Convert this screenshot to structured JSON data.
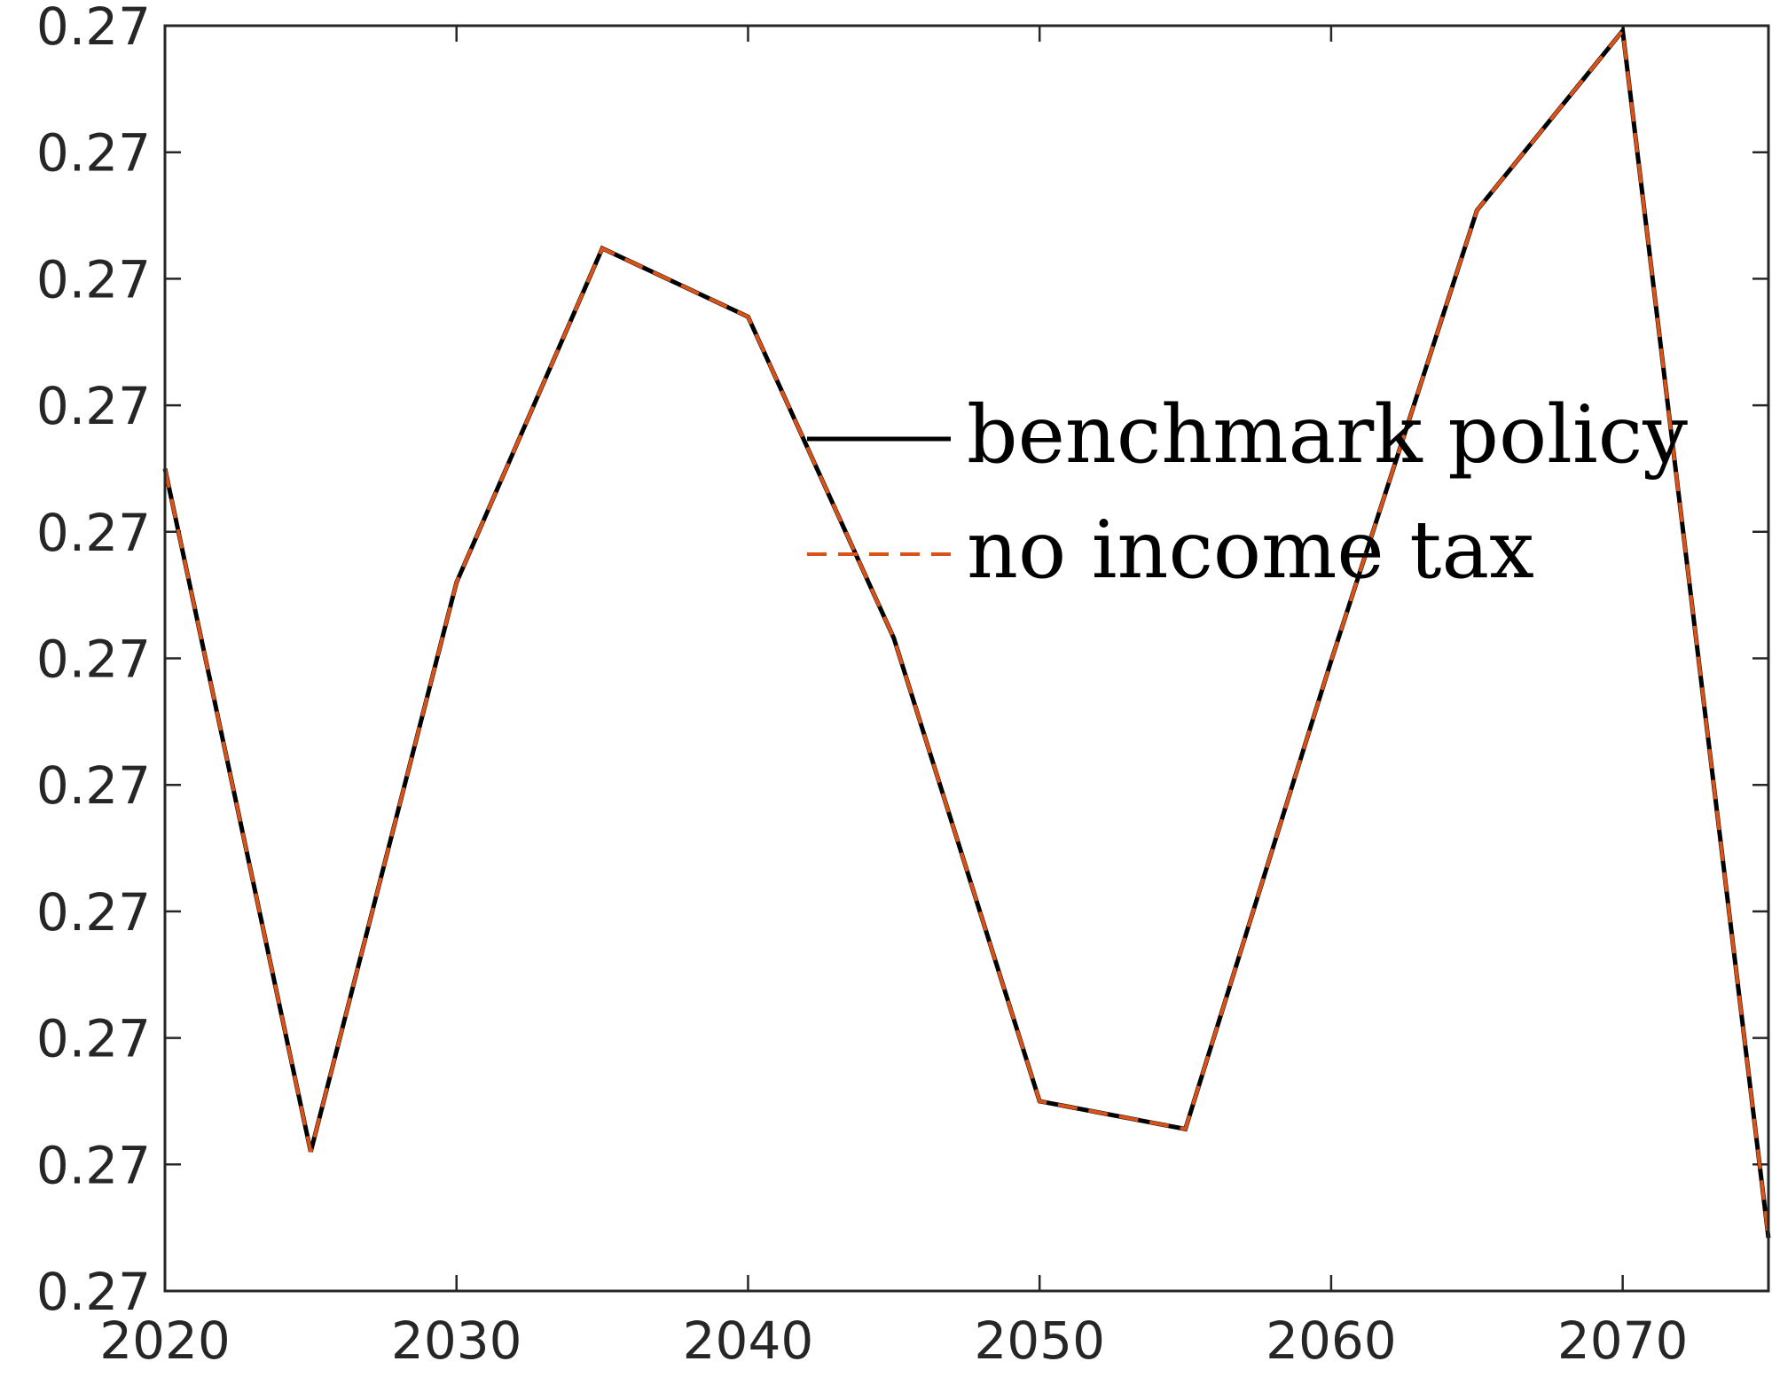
{
  "chart_data": {
    "type": "line",
    "x": [
      2020,
      2025,
      2030,
      2035,
      2040,
      2045,
      2050,
      2055,
      2060,
      2065,
      2070,
      2075
    ],
    "series": [
      {
        "name": "benchmark policy",
        "color": "#000000",
        "style": "solid",
        "values": [
          0.27225,
          0.26955,
          0.2718,
          0.27312,
          0.27285,
          0.27158,
          0.26975,
          0.26964,
          0.27149,
          0.27327,
          0.27398,
          0.26921
        ]
      },
      {
        "name": "no income tax",
        "color": "#D95319",
        "style": "dashed",
        "values": [
          0.27225,
          0.26955,
          0.2718,
          0.27312,
          0.27285,
          0.27158,
          0.26975,
          0.26964,
          0.27149,
          0.27327,
          0.27398,
          0.26921
        ]
      }
    ],
    "xlim": [
      2020,
      2075
    ],
    "ylim": [
      0.269,
      0.274
    ],
    "xticks": [
      2020,
      2030,
      2040,
      2050,
      2060,
      2070
    ],
    "xtick_labels": [
      "2020",
      "2030",
      "2040",
      "2050",
      "2060",
      "2070"
    ],
    "yticks": [
      0.269,
      0.2695,
      0.27,
      0.2705,
      0.271,
      0.2715,
      0.272,
      0.2725,
      0.273,
      0.2735,
      0.274
    ],
    "ytick_labels": [
      "0.27",
      "0.27",
      "0.27",
      "0.27",
      "0.27",
      "0.27",
      "0.27",
      "0.27",
      "0.27",
      "0.27",
      "0.27"
    ],
    "grid": false,
    "legend": "upper-right inside plot area, no box",
    "title": "",
    "xlabel": "",
    "ylabel": ""
  }
}
